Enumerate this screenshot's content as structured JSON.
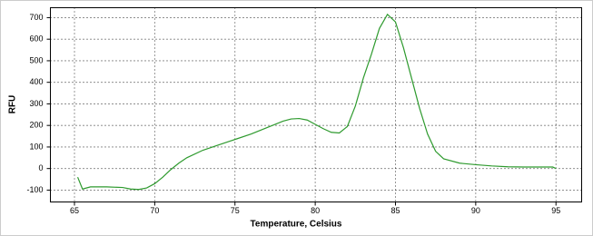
{
  "chart_data": {
    "type": "line",
    "x_label": "Temperature, Celsius",
    "y_label": "RFU",
    "xlim": [
      63.5,
      96.6
    ],
    "ylim": [
      -155,
      746
    ],
    "xticks": [
      65,
      70,
      75,
      80,
      85,
      90,
      95
    ],
    "yticks": [
      -100,
      0,
      100,
      200,
      300,
      400,
      500,
      600,
      700
    ],
    "grid": true,
    "x": [
      65.2,
      65.5,
      66,
      67,
      68,
      68.5,
      69,
      69.5,
      70,
      70.5,
      71,
      71.5,
      72,
      73,
      74,
      75,
      76,
      77,
      78,
      78.5,
      79,
      79.5,
      80,
      80.5,
      81,
      81.5,
      82,
      82.5,
      83,
      83.5,
      84,
      84.5,
      85,
      85.5,
      86,
      86.5,
      87,
      87.5,
      88,
      89,
      90,
      91,
      92,
      93,
      94,
      94.8,
      95
    ],
    "series": [
      {
        "color": "#2e9a2e",
        "values": [
          -40,
          -95,
          -85,
          -85,
          -88,
          -95,
          -97,
          -90,
          -70,
          -40,
          -5,
          25,
          50,
          85,
          110,
          135,
          160,
          190,
          220,
          230,
          232,
          225,
          205,
          185,
          168,
          165,
          195,
          290,
          420,
          530,
          650,
          715,
          680,
          560,
          420,
          280,
          160,
          80,
          45,
          25,
          18,
          12,
          8,
          7,
          7,
          7,
          0
        ]
      }
    ]
  }
}
